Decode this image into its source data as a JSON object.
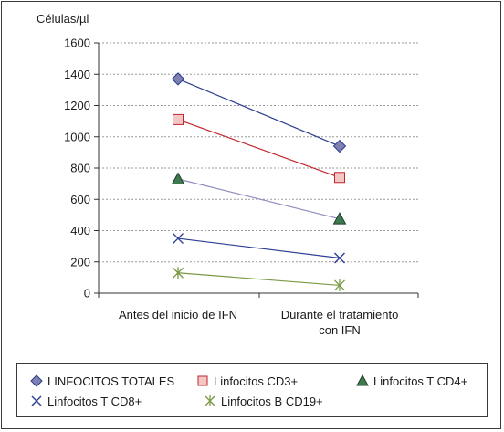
{
  "chart_data": {
    "type": "line",
    "ylabel": "Células/µl",
    "ylim": [
      0,
      1600
    ],
    "yticks": [
      0,
      200,
      400,
      600,
      800,
      1000,
      1200,
      1400,
      1600
    ],
    "grid": true,
    "legend_position": "bottom",
    "categories": [
      [
        "Antes del inicio de IFN"
      ],
      [
        "Durante el tratamiento",
        "con IFN"
      ]
    ],
    "series": [
      {
        "name": "LINFOCITOS TOTALES",
        "values": [
          1370,
          940
        ],
        "color": "#2c3e8c",
        "marker": "diamond",
        "marker_fill": "#7d80b0"
      },
      {
        "name": "Linfocitos CD3+",
        "values": [
          1110,
          740
        ],
        "color": "#c0262d",
        "marker": "square",
        "marker_fill": "#f4c6c4"
      },
      {
        "name": "Linfocitos T CD4+",
        "values": [
          730,
          475
        ],
        "color": "#8f8fc0",
        "marker": "triangle",
        "marker_fill": "#3f7a4f"
      },
      {
        "name": "Linfocitos T CD8+",
        "values": [
          350,
          225
        ],
        "color": "#2d3f96",
        "marker": "x",
        "marker_fill": "none"
      },
      {
        "name": "Linfocitos B CD19+",
        "values": [
          130,
          50
        ],
        "color": "#7a9a45",
        "marker": "star",
        "marker_fill": "none"
      }
    ]
  }
}
